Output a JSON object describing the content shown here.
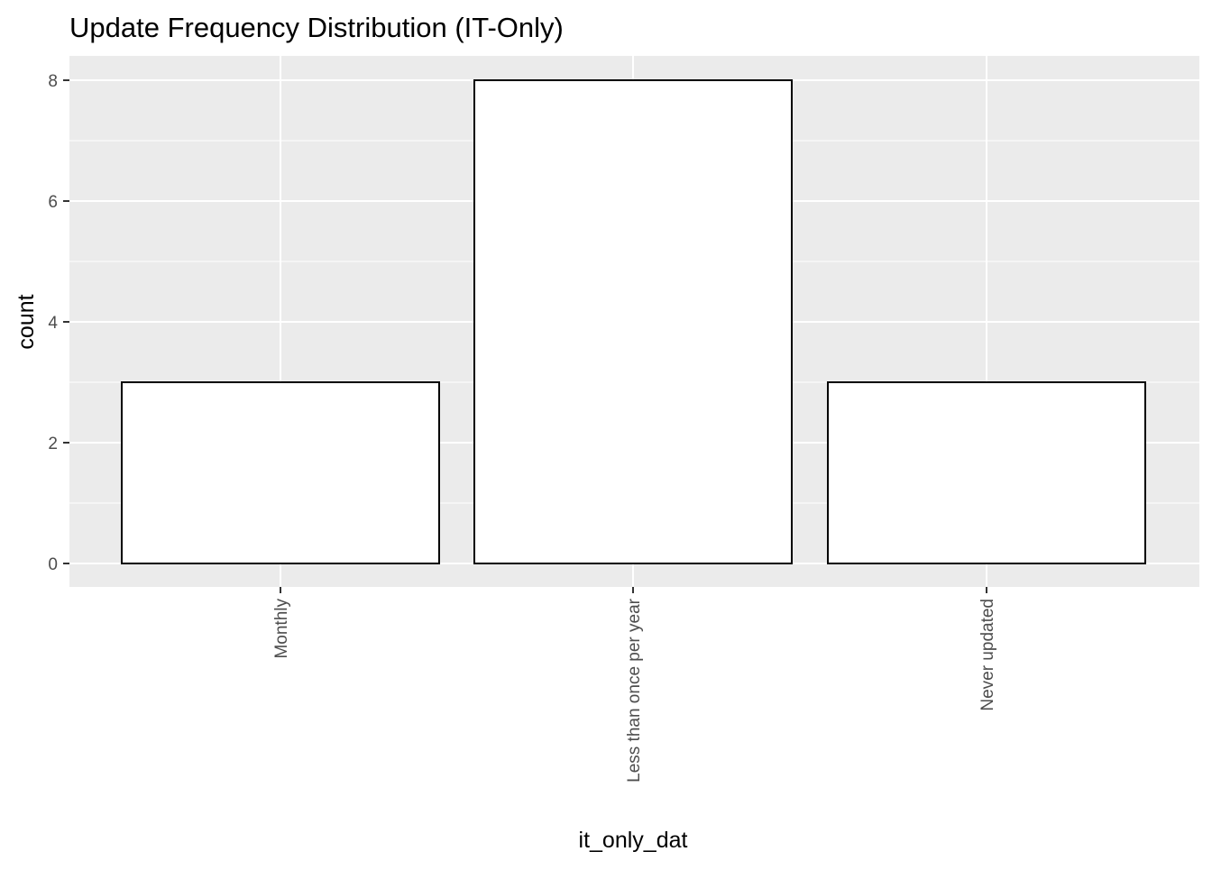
{
  "chart_data": {
    "type": "bar",
    "title": "Update Frequency Distribution (IT-Only)",
    "xlabel": "it_only_dat",
    "ylabel": "count",
    "categories": [
      "Monthly",
      "Less than once per year",
      "Never updated"
    ],
    "values": [
      3,
      8,
      3
    ],
    "ylim": [
      0,
      8
    ],
    "yticks": [
      0,
      2,
      4,
      6,
      8
    ],
    "grid": true,
    "legend": "none",
    "colors": {
      "panel_background": "#ebebeb",
      "grid": "#ffffff",
      "bar_fill": "#ffffff",
      "bar_outline": "#000000",
      "tick_text": "#4d4d4d",
      "tick_mark": "#333333"
    }
  }
}
